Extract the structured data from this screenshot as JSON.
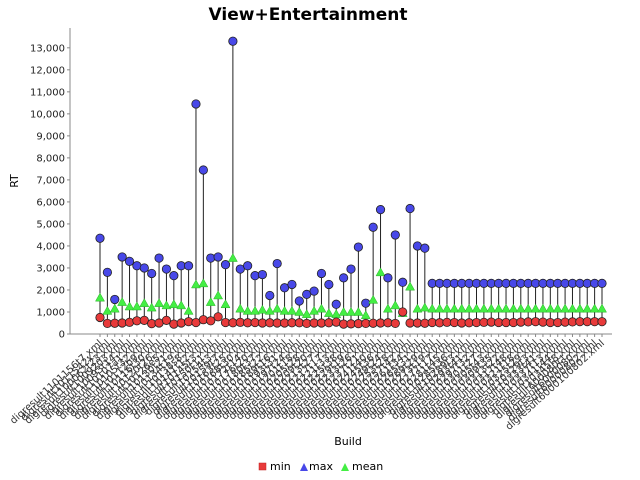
{
  "chart_data": {
    "type": "scatter",
    "title": "View+Entertainment",
    "xlabel": "Build",
    "ylabel": "RT",
    "ylim": [
      0,
      13900
    ],
    "yticks": [
      0,
      1000,
      2000,
      3000,
      4000,
      5000,
      6000,
      7000,
      8000,
      9000,
      10000,
      11000,
      12000,
      13000
    ],
    "ytick_labels": [
      "0",
      "1,000",
      "2,000",
      "3,000",
      "4,000",
      "5,000",
      "6,000",
      "7,000",
      "8,000",
      "9,000",
      "10,000",
      "11,000",
      "12,000",
      "13,000"
    ],
    "grid": false,
    "legend_position": "bottom",
    "colors": {
      "min": "#e83a3a",
      "max": "#4848e8",
      "mean": "#44ee44",
      "stem": "#222222"
    },
    "categories": [
      "digresult1101156t7.xml",
      "digresult1011542x.xml",
      "digresult100062t23.xml",
      "digresult1009203.xml",
      "digresult10093t14.xml",
      "digresult10107a1.xml",
      "digresult10105t32.xml",
      "digresult10112b9.xml",
      "digresult10116t30.xml",
      "digresult10120t26.xml",
      "digresult10126e5.xml",
      "digresult10130t21.xml",
      "digresult10134t19.xml",
      "digresult10138s8.xml",
      "digresult10141t12.xml",
      "digresult10145t3.xml",
      "digresult10150t11.xml",
      "digresult10154t3.xml",
      "digresult10159t7.xml",
      "digresult10163t25.xml",
      "digresult10168t30.xml",
      "digresult10172t14.xml",
      "digresult10176t20.xml",
      "digresult10180t37.xml",
      "digresult10185t22.xml",
      "digresult10189t16.xml",
      "digresult10193t31.xml",
      "digresult10197t24.xml",
      "digresult10201t18.xml",
      "digresult10205t28.xml",
      "digresult10209t20.xml",
      "digresult10213t27.xml",
      "digresult10217t17.xml",
      "digresult10221t33.xml",
      "digresult10225t38.xml",
      "digresult10229t19.xml",
      "digresult10233t26.xml",
      "digresult10237t21.xml",
      "digresult10241t40.xml",
      "digresult10245t36.xml",
      "digresult10249t24.xml",
      "digresult10253t28.xml",
      "digresult10257t42.xml",
      "digresult10261t34.xml",
      "digresult10265t31.xml",
      "digresult10269t29.xml",
      "digresult10273t19.xml",
      "digresult10277t17.xml",
      "digresult10281t45.xml",
      "digresult10285t36.xml",
      "digresult10289t3.xml",
      "digresult10293t41.xml",
      "digresult10297t32.xml",
      "digresult10301t27.xml",
      "digresult10305t43.xml",
      "digresult10309t35.xml",
      "digresult10313t22.xml",
      "digresult10317t48.xml",
      "digresult10321t18.xml",
      "digresult10325t29.xml",
      "digresult10329t3.xml",
      "digresult10333t41.xml",
      "digresult10337t13.xml",
      "digresult10341t44.xml",
      "digresult10345t8.xml",
      "digresult600080ct.xml",
      "digresult6000080.xml",
      "digresult60000802.xml",
      "digresult6000100802.xml"
    ],
    "series": [
      {
        "name": "min",
        "values": [
          750,
          480,
          490,
          500,
          530,
          600,
          620,
          470,
          500,
          620,
          450,
          500,
          560,
          520,
          650,
          600,
          780,
          520,
          510,
          530,
          510,
          520,
          500,
          510,
          500,
          500,
          510,
          510,
          480,
          500,
          500,
          510,
          540,
          450,
          460,
          470,
          480,
          490,
          500,
          510,
          480,
          1000,
          500,
          500,
          490,
          520,
          510,
          530,
          520,
          500,
          510,
          520,
          530,
          540,
          520,
          520,
          520,
          540,
          550,
          560,
          540,
          520,
          520,
          540,
          550,
          560,
          560,
          560,
          560
        ]
      },
      {
        "name": "max",
        "values": [
          4350,
          2800,
          1570,
          3500,
          3300,
          3100,
          3000,
          2750,
          3450,
          2950,
          2650,
          3100,
          3100,
          10450,
          7450,
          3450,
          3500,
          3150,
          13300,
          2950,
          3100,
          2650,
          2700,
          1750,
          3200,
          2100,
          2250,
          1500,
          1800,
          1950,
          2750,
          2250,
          1350,
          2550,
          2950,
          3950,
          1400,
          4850,
          5650,
          2550,
          4500,
          2350,
          5700,
          4000,
          3900,
          2300,
          2300,
          2300,
          2300,
          2300,
          2300,
          2300,
          2300,
          2300,
          2300,
          2300,
          2300,
          2300,
          2300,
          2300,
          2300,
          2300,
          2300,
          2300,
          2300,
          2300,
          2300,
          2300,
          2300
        ]
      },
      {
        "name": "mean",
        "values": [
          1650,
          1050,
          1150,
          1450,
          1250,
          1250,
          1400,
          1200,
          1400,
          1300,
          1350,
          1300,
          1050,
          2250,
          2300,
          1450,
          1750,
          1350,
          3450,
          1150,
          1050,
          1050,
          1100,
          1050,
          1150,
          1050,
          1050,
          1000,
          900,
          1050,
          1150,
          950,
          900,
          1000,
          1000,
          1000,
          850,
          1550,
          2800,
          1150,
          1300,
          950,
          2150,
          1150,
          1200,
          1150,
          1150,
          1150,
          1150,
          1150,
          1150,
          1150,
          1150,
          1150,
          1150,
          1150,
          1150,
          1150,
          1150,
          1150,
          1150,
          1150,
          1150,
          1150,
          1150,
          1150,
          1150,
          1150,
          1150
        ]
      }
    ]
  }
}
